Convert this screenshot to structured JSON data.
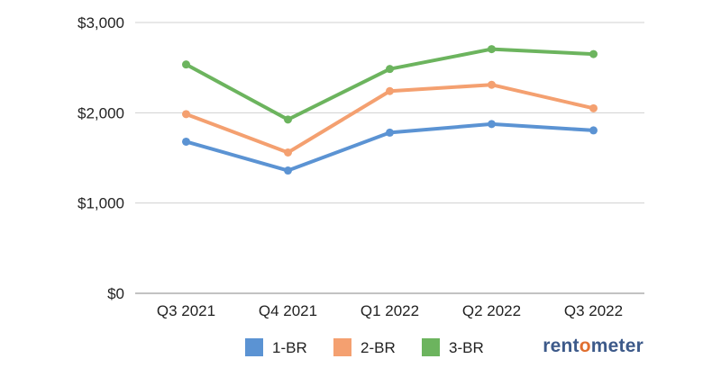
{
  "chart_data": {
    "type": "line",
    "categories": [
      "Q3 2021",
      "Q4 2021",
      "Q1 2022",
      "Q2 2022",
      "Q3 2022"
    ],
    "series": [
      {
        "name": "1-BR",
        "color": "#5b93d3",
        "values": [
          1680,
          1360,
          1780,
          1875,
          1805
        ]
      },
      {
        "name": "2-BR",
        "color": "#f4a070",
        "values": [
          1985,
          1560,
          2240,
          2310,
          2050
        ]
      },
      {
        "name": "3-BR",
        "color": "#6cb45e",
        "values": [
          2535,
          1925,
          2485,
          2705,
          2650
        ]
      }
    ],
    "ylim": [
      0,
      3000
    ],
    "yticks": [
      0,
      1000,
      2000,
      3000
    ],
    "ytick_labels": [
      "$0",
      "$1,000",
      "$2,000",
      "$3,000"
    ],
    "grid": true,
    "legend_position": "bottom"
  },
  "brand": {
    "part1": "rent",
    "part2": "o",
    "part3": "meter"
  }
}
